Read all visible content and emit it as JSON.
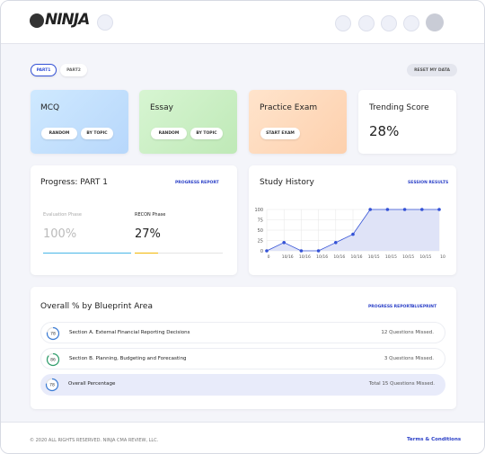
{
  "header": {
    "logo": "NINJA"
  },
  "tabs": [
    "PART1",
    "PART2"
  ],
  "reset_button": "RESET MY DATA",
  "cards": [
    {
      "title": "MCQ",
      "buttons": [
        "RANDOM",
        "BY TOPIC"
      ]
    },
    {
      "title": "Essay",
      "buttons": [
        "RANDOM",
        "BY TOPIC"
      ]
    },
    {
      "title": "Practice Exam",
      "buttons": [
        "START EXAM"
      ]
    }
  ],
  "trending": {
    "title": "Trending Score",
    "value": "28%"
  },
  "progress": {
    "title": "Progress: PART 1",
    "link": "PROGRESS REPORT",
    "phases": [
      {
        "name": "Evaluation Phase",
        "value": 100,
        "label": "100%"
      },
      {
        "name": "RECON Phase",
        "value": 27,
        "label": "27%"
      }
    ]
  },
  "study_history": {
    "type": "line",
    "title": "Study History",
    "link": "SESSION RESULTS",
    "categories": [
      "0",
      "10/16",
      "10/16",
      "10/16",
      "10/16",
      "10/16",
      "10/15",
      "10/15",
      "10/15",
      "10/15",
      "10"
    ],
    "values": [
      0,
      20,
      0,
      0,
      20,
      40,
      100,
      100,
      100,
      100,
      100
    ],
    "color": "#3452d6",
    "ylim": [
      0,
      100
    ],
    "yticks": [
      0,
      25,
      50,
      75,
      100
    ],
    "grid": true
  },
  "blueprint": {
    "title": "Overall % by Blueprint Area",
    "links": [
      "PROGRESS REPORT",
      "BLUEPRINT"
    ],
    "rows": [
      {
        "score": 78,
        "name": "Section A. External Financial Reporting Decisions",
        "missed": "12 Questions Missed."
      },
      {
        "score": 86,
        "name": "Section B. Planning, Budgeting and Forecasting",
        "missed": "3 Questions Missed."
      },
      {
        "score": 78,
        "name": "Overall Percentage",
        "missed": "Total 15 Questions Missed."
      }
    ]
  },
  "footer": {
    "copyright": "© 2020 ALL RIGHTS RESERVED. NINJA CMA REVIEW, LLC.",
    "terms": "Terms & Conditions"
  }
}
